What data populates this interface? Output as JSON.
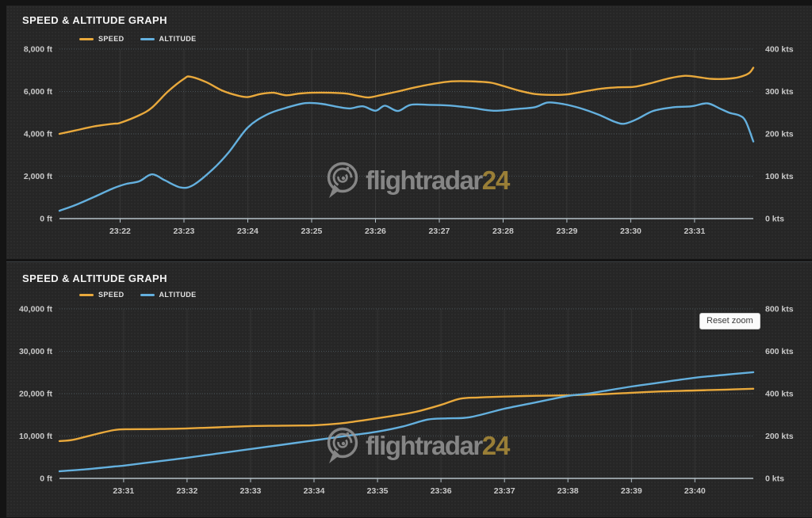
{
  "brand": {
    "watermark_text": "flightradar",
    "watermark_suffix": "24",
    "watermark_gray": "#9b9b9b",
    "watermark_accent": "#b3923a"
  },
  "colors": {
    "speed": "#e9a93c",
    "altitude": "#64b0de",
    "panel_background": "#262626",
    "axis_line": "#b6c2c9",
    "axis_label": "#c9c9c9"
  },
  "panels": [
    {
      "title": "SPEED & ALTITUDE GRAPH",
      "legend": [
        {
          "label": "SPEED",
          "color": "#e9a93c"
        },
        {
          "label": "ALTITUDE",
          "color": "#64b0de"
        }
      ]
    },
    {
      "title": "SPEED & ALTITUDE GRAPH",
      "legend": [
        {
          "label": "SPEED",
          "color": "#e9a93c"
        },
        {
          "label": "ALTITUDE",
          "color": "#64b0de"
        }
      ],
      "reset_zoom_label": "Reset zoom"
    }
  ],
  "chart_data": [
    {
      "type": "line",
      "title": "SPEED & ALTITUDE GRAPH",
      "legend_position": "top",
      "grid": true,
      "x_note": "x values are minutes after 23:00",
      "x_axis": {
        "tick_labels": [
          "23:22",
          "23:23",
          "23:24",
          "23:25",
          "23:26",
          "23:27",
          "23:28",
          "23:29",
          "23:30",
          "23:31"
        ],
        "tick_values": [
          22,
          23,
          24,
          25,
          26,
          27,
          28,
          29,
          30,
          31
        ],
        "range": [
          21.05,
          31.92
        ]
      },
      "y_left": {
        "title": "altitude",
        "unit": "ft",
        "tick_labels": [
          "8,000 ft",
          "6,000 ft",
          "4,000 ft",
          "2,000 ft",
          "0 ft"
        ],
        "tick_values": [
          8000,
          6000,
          4000,
          2000,
          0
        ],
        "range": [
          0,
          8000
        ]
      },
      "y_right": {
        "title": "speed",
        "unit": "kts",
        "tick_labels": [
          "400 kts",
          "300 kts",
          "200 kts",
          "100 kts",
          "0 kts"
        ],
        "tick_values": [
          400,
          300,
          200,
          100,
          0
        ],
        "range": [
          0,
          400
        ]
      },
      "series": [
        {
          "name": "SPEED",
          "axis": "right",
          "unit": "kts",
          "color": "#e9a93c",
          "points": [
            [
              21.05,
              200
            ],
            [
              21.3,
              208
            ],
            [
              21.6,
              218
            ],
            [
              21.9,
              224
            ],
            [
              22.0,
              226
            ],
            [
              22.3,
              244
            ],
            [
              22.5,
              262
            ],
            [
              22.75,
              300
            ],
            [
              23.0,
              330
            ],
            [
              23.1,
              335
            ],
            [
              23.35,
              322
            ],
            [
              23.6,
              302
            ],
            [
              23.85,
              290
            ],
            [
              24.0,
              287
            ],
            [
              24.2,
              294
            ],
            [
              24.4,
              297
            ],
            [
              24.6,
              291
            ],
            [
              24.8,
              295
            ],
            [
              25.0,
              297
            ],
            [
              25.3,
              297
            ],
            [
              25.55,
              295
            ],
            [
              25.75,
              289
            ],
            [
              25.9,
              286
            ],
            [
              26.1,
              292
            ],
            [
              26.35,
              300
            ],
            [
              26.6,
              309
            ],
            [
              26.9,
              318
            ],
            [
              27.2,
              324
            ],
            [
              27.5,
              324
            ],
            [
              27.8,
              321
            ],
            [
              28.0,
              313
            ],
            [
              28.25,
              302
            ],
            [
              28.5,
              294
            ],
            [
              28.75,
              292
            ],
            [
              29.0,
              293
            ],
            [
              29.3,
              301
            ],
            [
              29.55,
              307
            ],
            [
              29.8,
              310
            ],
            [
              30.05,
              311
            ],
            [
              30.3,
              319
            ],
            [
              30.6,
              331
            ],
            [
              30.85,
              337
            ],
            [
              31.05,
              334
            ],
            [
              31.25,
              330
            ],
            [
              31.5,
              330
            ],
            [
              31.7,
              334
            ],
            [
              31.85,
              343
            ],
            [
              31.92,
              356
            ]
          ]
        },
        {
          "name": "ALTITUDE",
          "axis": "left",
          "unit": "ft",
          "color": "#64b0de",
          "points": [
            [
              21.05,
              370
            ],
            [
              21.3,
              640
            ],
            [
              21.6,
              1030
            ],
            [
              21.9,
              1440
            ],
            [
              22.1,
              1640
            ],
            [
              22.3,
              1760
            ],
            [
              22.5,
              2090
            ],
            [
              22.7,
              1810
            ],
            [
              22.95,
              1470
            ],
            [
              23.15,
              1590
            ],
            [
              23.45,
              2320
            ],
            [
              23.7,
              3120
            ],
            [
              24.0,
              4300
            ],
            [
              24.3,
              4910
            ],
            [
              24.6,
              5230
            ],
            [
              24.9,
              5450
            ],
            [
              25.15,
              5420
            ],
            [
              25.4,
              5280
            ],
            [
              25.6,
              5200
            ],
            [
              25.8,
              5300
            ],
            [
              26.0,
              5090
            ],
            [
              26.15,
              5330
            ],
            [
              26.35,
              5080
            ],
            [
              26.55,
              5370
            ],
            [
              26.85,
              5370
            ],
            [
              27.15,
              5340
            ],
            [
              27.5,
              5230
            ],
            [
              27.85,
              5090
            ],
            [
              28.2,
              5170
            ],
            [
              28.5,
              5260
            ],
            [
              28.7,
              5480
            ],
            [
              28.95,
              5400
            ],
            [
              29.2,
              5220
            ],
            [
              29.5,
              4900
            ],
            [
              29.75,
              4570
            ],
            [
              29.9,
              4480
            ],
            [
              30.1,
              4700
            ],
            [
              30.35,
              5080
            ],
            [
              30.65,
              5250
            ],
            [
              30.95,
              5300
            ],
            [
              31.2,
              5440
            ],
            [
              31.4,
              5190
            ],
            [
              31.55,
              4990
            ],
            [
              31.7,
              4870
            ],
            [
              31.8,
              4600
            ],
            [
              31.92,
              3640
            ]
          ]
        }
      ]
    },
    {
      "type": "line",
      "title": "SPEED & ALTITUDE GRAPH",
      "legend_position": "top",
      "grid": true,
      "x_note": "x values are minutes after 23:00",
      "x_axis": {
        "tick_labels": [
          "23:31",
          "23:32",
          "23:33",
          "23:34",
          "23:35",
          "23:36",
          "23:37",
          "23:38",
          "23:39",
          "23:40"
        ],
        "tick_values": [
          31,
          32,
          33,
          34,
          35,
          36,
          37,
          38,
          39,
          40
        ],
        "range": [
          29.99,
          40.92
        ]
      },
      "y_left": {
        "title": "altitude",
        "unit": "ft",
        "tick_labels": [
          "40,000 ft",
          "30,000 ft",
          "20,000 ft",
          "10,000 ft",
          "0 ft"
        ],
        "tick_values": [
          40000,
          30000,
          20000,
          10000,
          0
        ],
        "range": [
          0,
          40000
        ]
      },
      "y_right": {
        "title": "speed",
        "unit": "kts",
        "tick_labels": [
          "800 kts",
          "600 kts",
          "400 kts",
          "200 kts",
          "0 kts"
        ],
        "tick_values": [
          800,
          600,
          400,
          200,
          0
        ],
        "range": [
          0,
          800
        ]
      },
      "series": [
        {
          "name": "SPEED",
          "axis": "right",
          "unit": "kts",
          "color": "#e9a93c",
          "points": [
            [
              29.99,
              176
            ],
            [
              30.2,
              182
            ],
            [
              30.5,
              204
            ],
            [
              30.85,
              228
            ],
            [
              31.1,
              232
            ],
            [
              31.5,
              233
            ],
            [
              32.0,
              236
            ],
            [
              32.5,
              241
            ],
            [
              33.0,
              247
            ],
            [
              33.5,
              249
            ],
            [
              34.0,
              251
            ],
            [
              34.4,
              259
            ],
            [
              34.8,
              275
            ],
            [
              35.2,
              293
            ],
            [
              35.6,
              314
            ],
            [
              36.0,
              347
            ],
            [
              36.3,
              376
            ],
            [
              36.6,
              382
            ],
            [
              37.0,
              386
            ],
            [
              37.5,
              390
            ],
            [
              38.0,
              392
            ],
            [
              38.5,
              397
            ],
            [
              39.0,
              404
            ],
            [
              39.5,
              411
            ],
            [
              40.0,
              415
            ],
            [
              40.5,
              419
            ],
            [
              40.92,
              423
            ]
          ]
        },
        {
          "name": "ALTITUDE",
          "axis": "left",
          "unit": "ft",
          "color": "#64b0de",
          "points": [
            [
              29.99,
              1680
            ],
            [
              30.4,
              2140
            ],
            [
              30.85,
              2800
            ],
            [
              31.0,
              3010
            ],
            [
              31.5,
              3940
            ],
            [
              32.0,
              4870
            ],
            [
              32.5,
              5900
            ],
            [
              33.0,
              6930
            ],
            [
              33.5,
              7950
            ],
            [
              34.0,
              8980
            ],
            [
              34.5,
              10010
            ],
            [
              35.0,
              11040
            ],
            [
              35.4,
              12260
            ],
            [
              35.8,
              13900
            ],
            [
              36.1,
              14160
            ],
            [
              36.45,
              14430
            ],
            [
              37.0,
              16450
            ],
            [
              37.5,
              17960
            ],
            [
              38.0,
              19450
            ],
            [
              38.35,
              20100
            ],
            [
              39.0,
              21690
            ],
            [
              39.5,
              22720
            ],
            [
              40.0,
              23750
            ],
            [
              40.5,
              24490
            ],
            [
              40.92,
              25060
            ]
          ]
        }
      ]
    }
  ]
}
